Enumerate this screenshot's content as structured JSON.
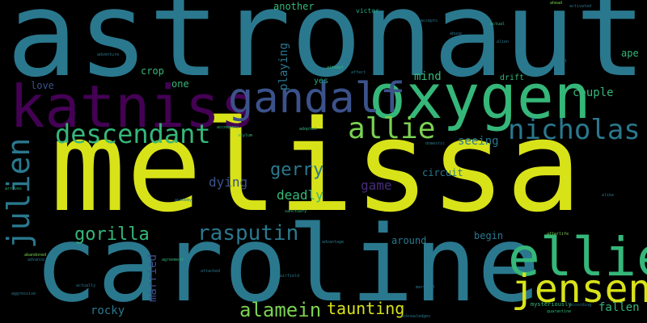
{
  "palette": {
    "background": "#000000",
    "yellow": "#d8e219",
    "blue": "#2a788e",
    "green": "#35b779",
    "purple": "#440154",
    "indigo": "#3b528b",
    "lime": "#7ad151",
    "teal": "#22a884",
    "violet": "#472d7b"
  },
  "words": {
    "melissa": "melissa",
    "astronaut": "astronaut",
    "caroline": "caroline",
    "oxygen": "oxygen",
    "katniss": "katniss",
    "gandalf": "gandalf",
    "ellie": "ellie",
    "jensen": "jensen",
    "nicholas": "nicholas",
    "descendant": "descendant",
    "allie": "allie",
    "julien": "julien",
    "rasputin": "rasputin",
    "gorilla": "gorilla",
    "alamein": "alamein",
    "taunting": "taunting",
    "gerry": "gerry",
    "deadly": "deadly",
    "dying": "dying",
    "game": "game",
    "couple": "couple",
    "fallen": "fallen",
    "rocky": "rocky",
    "married": "married",
    "playing": "playing",
    "mind": "mind",
    "another": "another",
    "seeing": "seeing",
    "circuit": "circuit",
    "begin": "begin",
    "around": "around",
    "love": "love",
    "one": "one",
    "crop": "crop",
    "drift": "drift",
    "ape": "ape",
    "yes": "yes",
    "victor": "victor",
    "mysteriously": "mysteriously",
    "arrives": "arrives",
    "advance": "advance",
    "marshall": "marshall",
    "actually": "actually",
    "agreement": "agreement",
    "domestic": "domestic",
    "accompany": "accompany",
    "sanctuary": "sanctuary",
    "abandoned": "abandoned",
    "agent": "agent",
    "alien": "alien",
    "actual": "actual",
    "quarantine": "quarantine",
    "airfield": "airfield",
    "adopted": "adopted",
    "attempt": "attempt",
    "activated": "activated",
    "acknowledges": "acknowledges",
    "advantage": "advantage",
    "according": "according",
    "academy": "academy",
    "afterlife": "afterlife",
    "aggressive": "aggressive",
    "ahead": "ahead",
    "abuse": "abuse",
    "adventure": "adventure",
    "accepts": "accepts",
    "affect": "affect",
    "alike": "alike",
    "asylum": "asylum",
    "attacked": "attacked"
  }
}
